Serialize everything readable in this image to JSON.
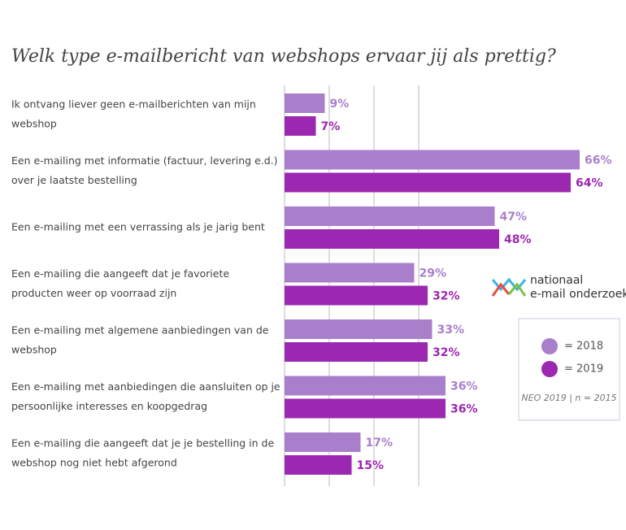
{
  "chart_data": {
    "type": "bar",
    "orientation": "horizontal",
    "title": "Welk type e-mailbericht van webshops ervaar jij als prettig?",
    "categories": [
      [
        "Ik ontvang liever geen e-mailberichten van mijn",
        "webshop"
      ],
      [
        "Een e-mailing met informatie (factuur, levering e.d.)",
        "over je laatste bestelling"
      ],
      [
        "Een e-mailing met een verrassing als je jarig bent"
      ],
      [
        "Een e-mailing die aangeeft dat je favoriete",
        "producten weer op voorraad zijn"
      ],
      [
        "Een e-mailing met algemene aanbiedingen van de",
        "webshop"
      ],
      [
        "Een e-mailing met aanbiedingen die aansluiten op je",
        "persoonlijke interesses en koopgedrag"
      ],
      [
        "Een e-mailing die aangeeft dat je je bestelling in de",
        "webshop nog niet hebt afgerond"
      ]
    ],
    "series": [
      {
        "name": "= 2018",
        "color": "#a97fcb",
        "values": [
          9,
          66,
          47,
          29,
          33,
          36,
          17
        ],
        "value_labels": [
          "9%",
          "66%",
          "47%",
          "29%",
          "33%",
          "36%",
          "17%"
        ]
      },
      {
        "name": "= 2019",
        "color": "#9c27b0",
        "values": [
          7,
          64,
          48,
          32,
          32,
          36,
          15
        ],
        "value_labels": [
          "7%",
          "64%",
          "48%",
          "32%",
          "32%",
          "36%",
          "15%"
        ]
      }
    ],
    "xlim": [
      0,
      70
    ],
    "xticks": [
      0,
      10,
      20,
      30
    ],
    "grid": true,
    "logo": [
      "nationaal",
      "e-mail onderzoek"
    ],
    "source": "NEO 2019 | n = 2015"
  }
}
